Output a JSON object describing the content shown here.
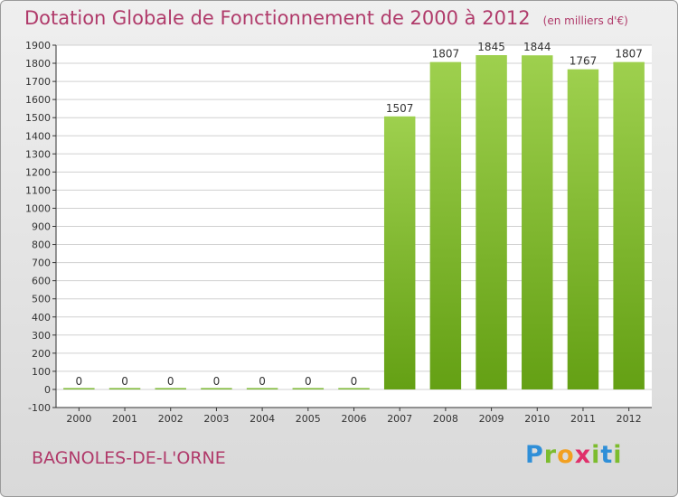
{
  "header": {
    "title": "Dotation Globale de Fonctionnement de 2000 à 2012",
    "subtitle": "(en milliers d'€)"
  },
  "footer": {
    "city": "BAGNOLES-DE-L'ORNE",
    "logo_text": "Proxiti"
  },
  "chart_data": {
    "type": "bar",
    "title": "Dotation Globale de Fonctionnement de 2000 à 2012",
    "subtitle": "(en milliers d'€)",
    "categories": [
      "2000",
      "2001",
      "2002",
      "2003",
      "2004",
      "2005",
      "2006",
      "2007",
      "2008",
      "2009",
      "2010",
      "2011",
      "2012"
    ],
    "values": [
      0,
      0,
      0,
      0,
      0,
      0,
      0,
      1507,
      1807,
      1845,
      1844,
      1767,
      1807
    ],
    "data_labels": [
      "0",
      "0",
      "0",
      "0",
      "0",
      "0",
      "0",
      "1507",
      "1807",
      "1845",
      "1844",
      "1767",
      "1807"
    ],
    "ylim": [
      -100,
      1900
    ],
    "yticks": [
      -100,
      0,
      100,
      200,
      300,
      400,
      500,
      600,
      700,
      800,
      900,
      1000,
      1100,
      1200,
      1300,
      1400,
      1500,
      1600,
      1700,
      1800,
      1900
    ],
    "grid": true,
    "colors": {
      "bar_top": "#9ed04e",
      "bar_bottom": "#64a014",
      "grid": "#d0d0d0",
      "axis": "#333333"
    }
  }
}
